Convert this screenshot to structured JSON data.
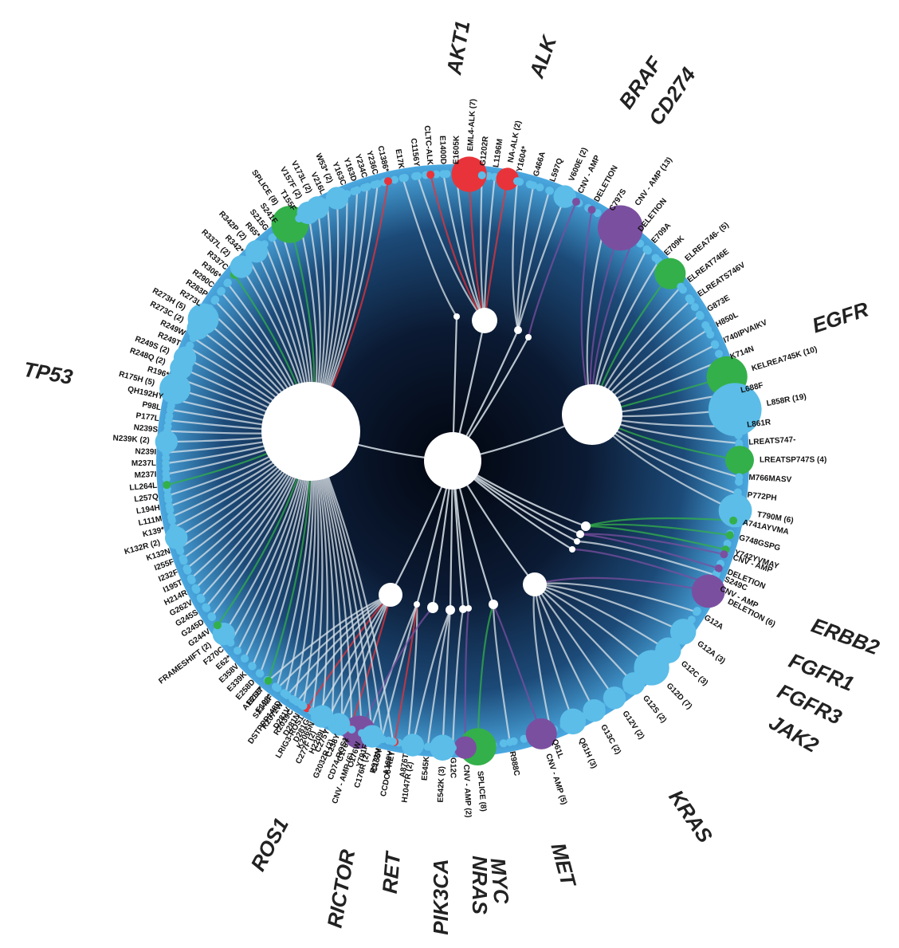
{
  "colors": {
    "disc_edge": "#4aa8e0",
    "disc_mid": "#1c4a78",
    "disc_center": "#02060f",
    "mutation": "#5bbde8",
    "fusion": "#e8333a",
    "splice": "#33b04a",
    "cnv": "#7b4fa0",
    "hub": "#ffffff",
    "link": "#d9e3ea"
  },
  "genes": [
    {
      "id": "AKT1",
      "label": "AKT1",
      "angle": -97
    },
    {
      "id": "ALK",
      "label": "ALK",
      "angle": -82
    },
    {
      "id": "BRAF",
      "label": "BRAF",
      "angle": -64
    },
    {
      "id": "CD274",
      "label": "CD274",
      "angle": -57
    },
    {
      "id": "EGFR",
      "label": "EGFR",
      "angle": -22
    },
    {
      "id": "ERBB2",
      "label": "ERBB2",
      "angle": 31
    },
    {
      "id": "FGFR1",
      "label": "FGFR1",
      "angle": 35
    },
    {
      "id": "FGFR3",
      "label": "FGFR3",
      "angle": 39
    },
    {
      "id": "JAK2",
      "label": "JAK2",
      "angle": 43
    },
    {
      "id": "KRAS",
      "label": "KRAS",
      "angle": 58
    },
    {
      "id": "MET",
      "label": "MET",
      "angle": 78
    },
    {
      "id": "MYC",
      "label": "MYC",
      "angle": 85
    },
    {
      "id": "NRAS",
      "label": "NRAS",
      "angle": 89
    },
    {
      "id": "PIK3CA",
      "label": "PIK3CA",
      "angle": 93
    },
    {
      "id": "RET",
      "label": "RET",
      "angle": 100
    },
    {
      "id": "RICTOR",
      "label": "RICTOR",
      "angle": 107
    },
    {
      "id": "ROS1",
      "label": "ROS1",
      "angle": 118
    },
    {
      "id": "TP53",
      "label": "TP53",
      "angle": -168
    }
  ],
  "hubs": [
    {
      "id": "center",
      "r": 36
    },
    {
      "id": "TP53",
      "r": 62,
      "gene": "TP53"
    },
    {
      "id": "EGFR",
      "r": 38,
      "gene": "EGFR"
    },
    {
      "id": "ALK",
      "r": 16,
      "gene": "ALK"
    },
    {
      "id": "KRAS",
      "r": 15,
      "gene": "KRAS"
    },
    {
      "id": "ROS1",
      "r": 15,
      "gene": "ROS1"
    },
    {
      "id": "AKT1",
      "r": 4,
      "gene": "AKT1"
    },
    {
      "id": "BRAF",
      "r": 5,
      "gene": "BRAF"
    },
    {
      "id": "CD274",
      "r": 4,
      "gene": "CD274"
    },
    {
      "id": "ERBB2",
      "r": 6,
      "gene": "ERBB2"
    },
    {
      "id": "FGFR1",
      "r": 5,
      "gene": "FGFR1"
    },
    {
      "id": "FGFR3",
      "r": 4,
      "gene": "FGFR3"
    },
    {
      "id": "JAK2",
      "r": 4,
      "gene": "JAK2"
    },
    {
      "id": "MET",
      "r": 6,
      "gene": "MET"
    },
    {
      "id": "MYC",
      "r": 4,
      "gene": "MYC"
    },
    {
      "id": "NRAS",
      "r": 5,
      "gene": "NRAS"
    },
    {
      "id": "PIK3CA",
      "r": 6,
      "gene": "PIK3CA"
    },
    {
      "id": "RET",
      "r": 4,
      "gene": "RET"
    },
    {
      "id": "RICTOR",
      "r": 7,
      "gene": "RICTOR"
    }
  ],
  "mutations": [
    {
      "gene": "AKT1",
      "label": "E17K",
      "type": "mutation"
    },
    {
      "gene": "ALK",
      "label": "C1156Y",
      "type": "mutation"
    },
    {
      "gene": "ALK",
      "label": "CLTC-ALK",
      "type": "fusion"
    },
    {
      "gene": "ALK",
      "label": "E1400D",
      "type": "mutation"
    },
    {
      "gene": "ALK",
      "label": "E1605K",
      "type": "mutation"
    },
    {
      "gene": "ALK",
      "label": "EML4-ALK (7)",
      "type": "fusion",
      "count": 7
    },
    {
      "gene": "ALK",
      "label": "G1202R",
      "type": "mutation"
    },
    {
      "gene": "ALK",
      "label": "L1196M",
      "type": "mutation"
    },
    {
      "gene": "ALK",
      "label": "NA-ALK (2)",
      "type": "fusion",
      "count": 2
    },
    {
      "gene": "BRAF",
      "label": "Y1604*",
      "type": "mutation"
    },
    {
      "gene": "BRAF",
      "label": "G466A",
      "type": "mutation"
    },
    {
      "gene": "BRAF",
      "label": "L597Q",
      "type": "mutation"
    },
    {
      "gene": "BRAF",
      "label": "V600E (2)",
      "type": "mutation",
      "count": 2
    },
    {
      "gene": "CD274",
      "label": "CNV - AMP",
      "type": "cnv"
    },
    {
      "gene": "EGFR",
      "label": "DELETION",
      "type": "cnv"
    },
    {
      "gene": "EGFR",
      "label": "C797S",
      "type": "mutation"
    },
    {
      "gene": "EGFR",
      "label": "CNV - AMP (13)",
      "type": "cnv",
      "count": 13
    },
    {
      "gene": "EGFR",
      "label": "DELETION",
      "type": "cnv"
    },
    {
      "gene": "EGFR",
      "label": "E709A",
      "type": "mutation"
    },
    {
      "gene": "EGFR",
      "label": "E709K",
      "type": "mutation"
    },
    {
      "gene": "EGFR",
      "label": "ELREA746- (5)",
      "type": "splice",
      "count": 5
    },
    {
      "gene": "EGFR",
      "label": "ELREAT746E",
      "type": "mutation"
    },
    {
      "gene": "EGFR",
      "label": "ELREATS746V",
      "type": "mutation"
    },
    {
      "gene": "EGFR",
      "label": "G873E",
      "type": "mutation"
    },
    {
      "gene": "EGFR",
      "label": "H850L",
      "type": "mutation"
    },
    {
      "gene": "EGFR",
      "label": "I740IPVAIKV",
      "type": "mutation"
    },
    {
      "gene": "EGFR",
      "label": "K714N",
      "type": "mutation"
    },
    {
      "gene": "EGFR",
      "label": "KELREA745K (10)",
      "type": "splice",
      "count": 10
    },
    {
      "gene": "EGFR",
      "label": "L688F",
      "type": "mutation"
    },
    {
      "gene": "EGFR",
      "label": "L858R (19)",
      "type": "mutation",
      "count": 19
    },
    {
      "gene": "EGFR",
      "label": "L861R",
      "type": "mutation"
    },
    {
      "gene": "EGFR",
      "label": "LREATS747-",
      "type": "mutation"
    },
    {
      "gene": "EGFR",
      "label": "LREATSP747S (4)",
      "type": "splice",
      "count": 4
    },
    {
      "gene": "EGFR",
      "label": "M766MASV",
      "type": "mutation"
    },
    {
      "gene": "EGFR",
      "label": "P772PH",
      "type": "mutation"
    },
    {
      "gene": "EGFR",
      "label": "T790M (6)",
      "type": "mutation",
      "count": 6
    },
    {
      "gene": "ERBB2",
      "label": "A741AYVMA",
      "type": "splice"
    },
    {
      "gene": "ERBB2",
      "label": "G748GSPG",
      "type": "splice"
    },
    {
      "gene": "ERBB2",
      "label": "Y742YVMAY",
      "type": "splice"
    },
    {
      "gene": "FGFR1",
      "label": "CNV - AMP",
      "type": "cnv"
    },
    {
      "gene": "FGFR1",
      "label": "DELETION",
      "type": "cnv"
    },
    {
      "gene": "FGFR3",
      "label": "S249C",
      "type": "mutation"
    },
    {
      "gene": "JAK2",
      "label": "CNV - AMP",
      "type": "cnv"
    },
    {
      "gene": "KRAS",
      "label": "DELETION (6)",
      "type": "cnv",
      "count": 6
    },
    {
      "gene": "KRAS",
      "label": "G12A",
      "type": "mutation"
    },
    {
      "gene": "KRAS",
      "label": "G12A (3)",
      "type": "mutation",
      "count": 3
    },
    {
      "gene": "KRAS",
      "label": "G12C (3)",
      "type": "mutation",
      "count": 3
    },
    {
      "gene": "KRAS",
      "label": "G12D (7)",
      "type": "mutation",
      "count": 7
    },
    {
      "gene": "KRAS",
      "label": "G12S (2)",
      "type": "mutation",
      "count": 2
    },
    {
      "gene": "KRAS",
      "label": "G12V (2)",
      "type": "mutation",
      "count": 2
    },
    {
      "gene": "KRAS",
      "label": "G13C (2)",
      "type": "mutation",
      "count": 2
    },
    {
      "gene": "KRAS",
      "label": "Q61H (3)",
      "type": "mutation",
      "count": 3
    },
    {
      "gene": "KRAS",
      "label": "Q61L",
      "type": "mutation"
    },
    {
      "gene": "MET",
      "label": "CNV - AMP (5)",
      "type": "cnv",
      "count": 5
    },
    {
      "gene": "MET",
      "label": "R988C",
      "type": "mutation"
    },
    {
      "gene": "MET",
      "label": "SPLICE (8)",
      "type": "splice",
      "count": 8
    },
    {
      "gene": "MYC",
      "label": "CNV - AMP (2)",
      "type": "cnv",
      "count": 2
    },
    {
      "gene": "NRAS",
      "label": "G12C",
      "type": "mutation"
    },
    {
      "gene": "PIK3CA",
      "label": "E542K (3)",
      "type": "mutation",
      "count": 3
    },
    {
      "gene": "PIK3CA",
      "label": "E545K",
      "type": "mutation"
    },
    {
      "gene": "PIK3CA",
      "label": "H1047R (2)",
      "type": "mutation",
      "count": 2
    },
    {
      "gene": "RET",
      "label": "A876T",
      "type": "mutation"
    },
    {
      "gene": "RET",
      "label": "CCDC6-RET",
      "type": "fusion"
    },
    {
      "gene": "RET",
      "label": "R972M",
      "type": "mutation"
    },
    {
      "gene": "RET",
      "label": "Y791F",
      "type": "mutation"
    },
    {
      "gene": "RICTOR",
      "label": "CNV - AMP (6)",
      "type": "cnv",
      "count": 6
    },
    {
      "gene": "ROS1",
      "label": "CD74-ROS1",
      "type": "fusion"
    },
    {
      "gene": "ROS1",
      "label": "G2032R (2)",
      "type": "mutation",
      "count": 2
    },
    {
      "gene": "ROS1",
      "label": "H2209L",
      "type": "mutation"
    },
    {
      "gene": "ROS1",
      "label": "K2065N",
      "type": "mutation"
    },
    {
      "gene": "ROS1",
      "label": "LRIG3-ROS1",
      "type": "fusion"
    },
    {
      "gene": "ROS1",
      "label": "R2039C",
      "type": "mutation"
    },
    {
      "gene": "ROS1",
      "label": "R2072W",
      "type": "mutation"
    },
    {
      "gene": "ROS1",
      "label": "S2142F",
      "type": "mutation"
    },
    {
      "gene": "ROS1",
      "label": "A1611T",
      "type": "mutation"
    },
    {
      "gene": "TP53",
      "label": "A189V",
      "type": "mutation"
    },
    {
      "gene": "TP53",
      "label": "C135Y",
      "type": "mutation"
    },
    {
      "gene": "TP53",
      "label": "C176R (2)",
      "type": "mutation",
      "count": 2
    },
    {
      "gene": "TP53",
      "label": "C176W",
      "type": "mutation"
    },
    {
      "gene": "TP53",
      "label": "C176Y",
      "type": "mutation"
    },
    {
      "gene": "TP53",
      "label": "C238Y",
      "type": "mutation"
    },
    {
      "gene": "TP53",
      "label": "C275Y",
      "type": "mutation"
    },
    {
      "gene": "TP53",
      "label": "C277F (2)",
      "type": "mutation",
      "count": 2
    },
    {
      "gene": "TP53",
      "label": "D281G",
      "type": "mutation"
    },
    {
      "gene": "TP53",
      "label": "D281N",
      "type": "mutation"
    },
    {
      "gene": "TP53",
      "label": "D281V",
      "type": "mutation"
    },
    {
      "gene": "TP53",
      "label": "DSTPPP148D",
      "type": "mutation"
    },
    {
      "gene": "TP53",
      "label": "E198*",
      "type": "mutation"
    },
    {
      "gene": "TP53",
      "label": "E258*",
      "type": "splice"
    },
    {
      "gene": "TP53",
      "label": "E258D",
      "type": "mutation"
    },
    {
      "gene": "TP53",
      "label": "E339K",
      "type": "mutation"
    },
    {
      "gene": "TP53",
      "label": "E358V",
      "type": "mutation"
    },
    {
      "gene": "TP53",
      "label": "E62*",
      "type": "mutation"
    },
    {
      "gene": "TP53",
      "label": "F270C",
      "type": "mutation"
    },
    {
      "gene": "TP53",
      "label": "FRAMESHIFT (2)",
      "type": "mutation",
      "count": 2
    },
    {
      "gene": "TP53",
      "label": "G244V",
      "type": "splice"
    },
    {
      "gene": "TP53",
      "label": "G245D",
      "type": "mutation"
    },
    {
      "gene": "TP53",
      "label": "G245S",
      "type": "mutation"
    },
    {
      "gene": "TP53",
      "label": "G262V",
      "type": "mutation"
    },
    {
      "gene": "TP53",
      "label": "H214R",
      "type": "mutation"
    },
    {
      "gene": "TP53",
      "label": "I195T",
      "type": "mutation"
    },
    {
      "gene": "TP53",
      "label": "I232F",
      "type": "mutation"
    },
    {
      "gene": "TP53",
      "label": "I255F",
      "type": "mutation"
    },
    {
      "gene": "TP53",
      "label": "K132N",
      "type": "mutation"
    },
    {
      "gene": "TP53",
      "label": "K132R (2)",
      "type": "mutation",
      "count": 2
    },
    {
      "gene": "TP53",
      "label": "K139*",
      "type": "mutation"
    },
    {
      "gene": "TP53",
      "label": "L111M",
      "type": "mutation"
    },
    {
      "gene": "TP53",
      "label": "L194H",
      "type": "mutation"
    },
    {
      "gene": "TP53",
      "label": "L257Q",
      "type": "mutation"
    },
    {
      "gene": "TP53",
      "label": "LL264L",
      "type": "splice"
    },
    {
      "gene": "TP53",
      "label": "M237I",
      "type": "mutation"
    },
    {
      "gene": "TP53",
      "label": "M237L",
      "type": "mutation"
    },
    {
      "gene": "TP53",
      "label": "N239I",
      "type": "mutation"
    },
    {
      "gene": "TP53",
      "label": "N239K (2)",
      "type": "mutation",
      "count": 2
    },
    {
      "gene": "TP53",
      "label": "N239S",
      "type": "mutation"
    },
    {
      "gene": "TP53",
      "label": "P177L",
      "type": "mutation"
    },
    {
      "gene": "TP53",
      "label": "P98L",
      "type": "mutation"
    },
    {
      "gene": "TP53",
      "label": "QH192HY",
      "type": "mutation"
    },
    {
      "gene": "TP53",
      "label": "R175H (5)",
      "type": "mutation",
      "count": 5
    },
    {
      "gene": "TP53",
      "label": "R196*",
      "type": "mutation"
    },
    {
      "gene": "TP53",
      "label": "R248Q (2)",
      "type": "mutation",
      "count": 2
    },
    {
      "gene": "TP53",
      "label": "R249S (2)",
      "type": "mutation",
      "count": 2
    },
    {
      "gene": "TP53",
      "label": "R249T",
      "type": "mutation"
    },
    {
      "gene": "TP53",
      "label": "R249W",
      "type": "mutation"
    },
    {
      "gene": "TP53",
      "label": "R273C (2)",
      "type": "mutation",
      "count": 2
    },
    {
      "gene": "TP53",
      "label": "R273H (5)",
      "type": "mutation",
      "count": 5
    },
    {
      "gene": "TP53",
      "label": "R273L",
      "type": "mutation"
    },
    {
      "gene": "TP53",
      "label": "R283P",
      "type": "mutation"
    },
    {
      "gene": "TP53",
      "label": "R290C",
      "type": "mutation"
    },
    {
      "gene": "TP53",
      "label": "R306*",
      "type": "mutation"
    },
    {
      "gene": "TP53",
      "label": "R337C",
      "type": "splice"
    },
    {
      "gene": "TP53",
      "label": "R337L (2)",
      "type": "mutation",
      "count": 2
    },
    {
      "gene": "TP53",
      "label": "R342*",
      "type": "mutation"
    },
    {
      "gene": "TP53",
      "label": "R342P (2)",
      "type": "mutation",
      "count": 2
    },
    {
      "gene": "TP53",
      "label": "R65*",
      "type": "mutation"
    },
    {
      "gene": "TP53",
      "label": "S215G",
      "type": "mutation"
    },
    {
      "gene": "TP53",
      "label": "S241F",
      "type": "mutation"
    },
    {
      "gene": "TP53",
      "label": "SPLICE (8)",
      "type": "splice",
      "count": 8
    },
    {
      "gene": "TP53",
      "label": "T155F",
      "type": "mutation"
    },
    {
      "gene": "TP53",
      "label": "V157F (2)",
      "type": "mutation",
      "count": 2
    },
    {
      "gene": "TP53",
      "label": "V173L (2)",
      "type": "mutation",
      "count": 2
    },
    {
      "gene": "TP53",
      "label": "V216L",
      "type": "mutation"
    },
    {
      "gene": "TP53",
      "label": "W53* (2)",
      "type": "mutation",
      "count": 2
    },
    {
      "gene": "TP53",
      "label": "Y163C",
      "type": "mutation"
    },
    {
      "gene": "TP53",
      "label": "Y163D",
      "type": "mutation"
    },
    {
      "gene": "TP53",
      "label": "Y234C",
      "type": "mutation"
    },
    {
      "gene": "TP53",
      "label": "Y236C",
      "type": "mutation"
    },
    {
      "gene": "TP53",
      "label": "C1386*",
      "type": "fusion"
    }
  ]
}
